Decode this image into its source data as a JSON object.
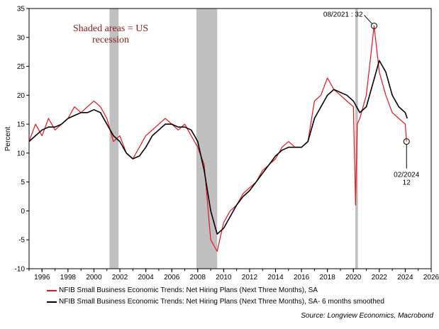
{
  "chart_data": {
    "type": "line",
    "ylabel": "Percent",
    "xlim": [
      1995.0,
      2026.0
    ],
    "ylim": [
      -10,
      35
    ],
    "yticks": [
      -10,
      -5,
      0,
      5,
      10,
      15,
      20,
      25,
      30,
      35
    ],
    "xticks": [
      1996,
      1998,
      2000,
      2002,
      2004,
      2006,
      2008,
      2010,
      2012,
      2014,
      2016,
      2018,
      2020,
      2022,
      2024,
      2026
    ],
    "grid": false,
    "legend_position": "bottom",
    "annotation_text": "Shaded areas = US recession",
    "recessions": [
      [
        2001.2,
        2001.9
      ],
      [
        2007.9,
        2009.5
      ],
      [
        2020.15,
        2020.35
      ]
    ],
    "callouts": [
      {
        "label": "08/2021 : 32",
        "x": 2021.6,
        "y": 32
      },
      {
        "label": "02/2024",
        "sublabel": "12",
        "x": 2024.1,
        "y": 12
      }
    ],
    "series": [
      {
        "name": "NFIB Small Business Economic Trends: Net Hiring Plans (Next Three Months), SA",
        "color": "#e8141c",
        "x": [
          1995.0,
          1995.5,
          1996.0,
          1996.5,
          1997.0,
          1997.5,
          1998.0,
          1998.5,
          1999.0,
          1999.5,
          2000.0,
          2000.5,
          2001.0,
          2001.5,
          2002.0,
          2002.5,
          2003.0,
          2003.5,
          2004.0,
          2004.5,
          2005.0,
          2005.5,
          2006.0,
          2006.5,
          2007.0,
          2007.5,
          2008.0,
          2008.5,
          2009.0,
          2009.5,
          2010.0,
          2010.5,
          2011.0,
          2011.5,
          2012.0,
          2012.5,
          2013.0,
          2013.5,
          2014.0,
          2014.5,
          2015.0,
          2015.5,
          2016.0,
          2016.5,
          2017.0,
          2017.5,
          2018.0,
          2018.5,
          2019.0,
          2019.5,
          2020.0,
          2020.17,
          2020.3,
          2020.5,
          2021.0,
          2021.3,
          2021.6,
          2022.0,
          2022.5,
          2023.0,
          2023.5,
          2024.0,
          2024.1
        ],
        "values": [
          12,
          15,
          13,
          16,
          14,
          15,
          16,
          18,
          17,
          18,
          19,
          18,
          16,
          12,
          13,
          10,
          9,
          11,
          13,
          14,
          15,
          16,
          15,
          14,
          15,
          13,
          11,
          8,
          -5,
          -7,
          -2,
          0,
          1,
          3,
          4,
          5,
          7,
          8,
          9,
          11,
          12,
          11,
          11,
          12,
          19,
          20,
          23,
          21,
          20,
          19,
          18,
          1,
          15,
          16,
          20,
          26,
          32,
          24,
          20,
          17,
          16,
          15,
          12
        ]
      },
      {
        "name": "NFIB Small Business Economic Trends: Net Hiring Plans (Next Three Months), SA- 6 months smoothed",
        "color": "#000000",
        "x": [
          1995.0,
          1995.5,
          1996.0,
          1996.5,
          1997.0,
          1997.5,
          1998.0,
          1998.5,
          1999.0,
          1999.5,
          2000.0,
          2000.5,
          2001.0,
          2001.5,
          2002.0,
          2002.5,
          2003.0,
          2003.5,
          2004.0,
          2004.5,
          2005.0,
          2005.5,
          2006.0,
          2006.5,
          2007.0,
          2007.5,
          2008.0,
          2008.5,
          2009.0,
          2009.5,
          2010.0,
          2010.5,
          2011.0,
          2011.5,
          2012.0,
          2012.5,
          2013.0,
          2013.5,
          2014.0,
          2014.5,
          2015.0,
          2015.5,
          2016.0,
          2016.5,
          2017.0,
          2017.5,
          2018.0,
          2018.5,
          2019.0,
          2019.5,
          2020.0,
          2020.5,
          2021.0,
          2021.5,
          2022.0,
          2022.5,
          2023.0,
          2023.5,
          2024.0,
          2024.15
        ],
        "values": [
          12,
          13,
          14,
          14.5,
          14.5,
          15,
          16,
          16.5,
          17,
          17,
          17.5,
          17,
          15,
          13,
          12,
          10,
          9,
          9.5,
          11,
          13,
          14,
          15,
          15,
          14.5,
          14.5,
          14,
          12,
          7,
          0,
          -4,
          -3,
          -1,
          1,
          2.5,
          3.5,
          5,
          6.5,
          8,
          9.5,
          10.5,
          11,
          11,
          11,
          12,
          16,
          18,
          20,
          21,
          20.5,
          20,
          19,
          17,
          18,
          22,
          26,
          24,
          20,
          18,
          17,
          16
        ]
      }
    ]
  },
  "source": "Source: Longview Economics, Macrobond"
}
